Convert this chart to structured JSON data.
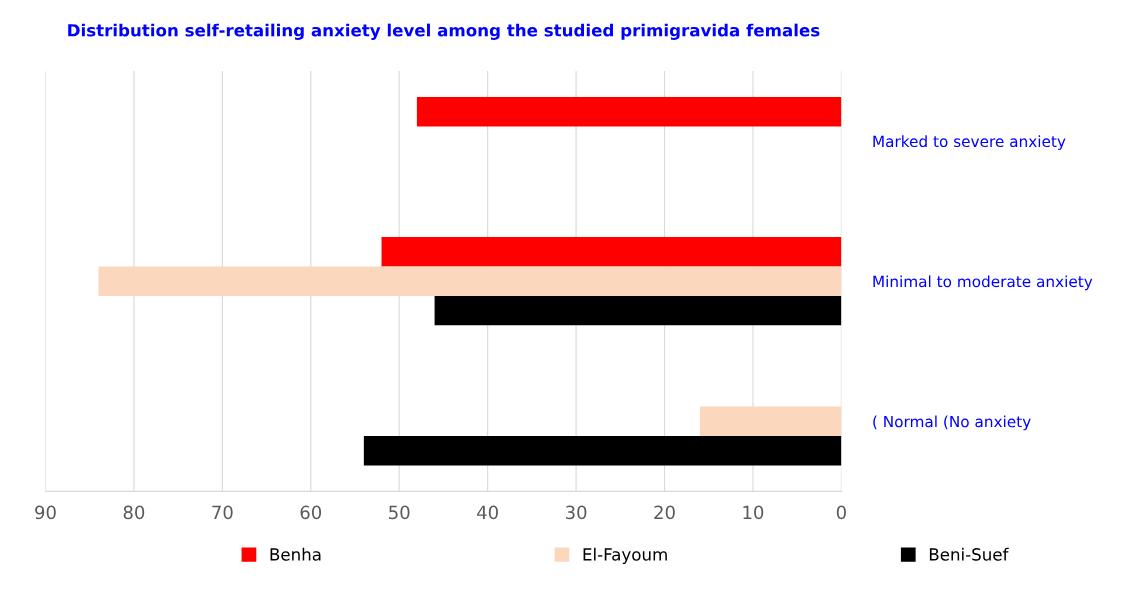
{
  "chart_data": {
    "type": "bar",
    "orientation": "horizontal",
    "title": "Distribution self-retailing anxiety level among the studied primigravida females",
    "categories": [
      "Marked to severe anxiety",
      "Minimal to moderate anxiety",
      "( Normal (No anxiety"
    ],
    "series": [
      {
        "name": "Benha",
        "color": "#ff0000",
        "values": [
          48,
          52,
          0
        ]
      },
      {
        "name": "El-Fayoum",
        "color": "#fad7bd",
        "values": [
          0,
          84,
          16
        ]
      },
      {
        "name": "Beni-Suef",
        "color": "#000000",
        "values": [
          0,
          46,
          54
        ]
      }
    ],
    "xlim": [
      90,
      0
    ],
    "xticks": [
      90,
      80,
      70,
      60,
      50,
      40,
      30,
      20,
      10,
      0
    ],
    "grid": "x",
    "legend": "bottom"
  }
}
